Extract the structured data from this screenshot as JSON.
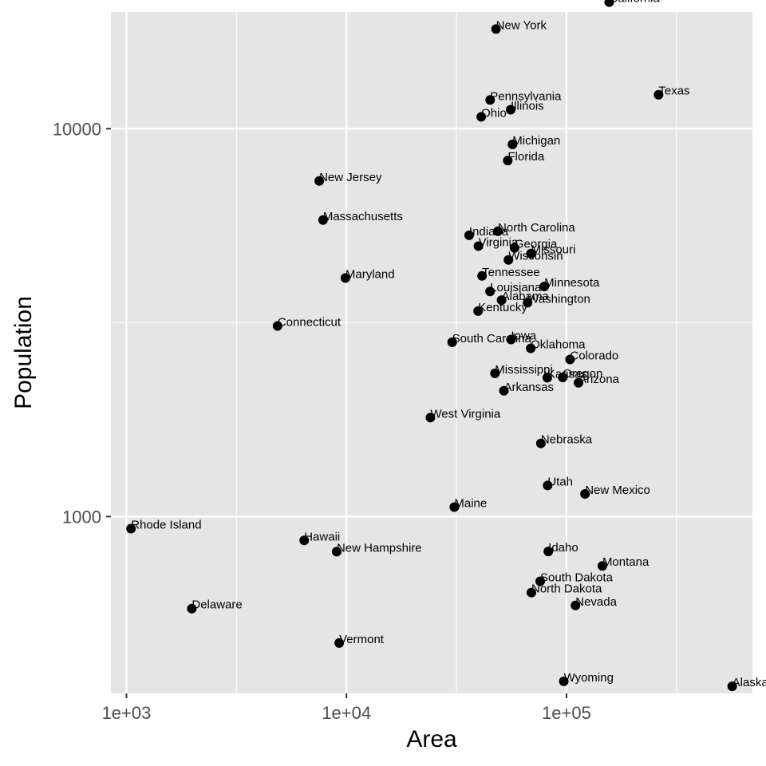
{
  "chart_data": {
    "type": "scatter",
    "title": "",
    "xlabel": "Area",
    "ylabel": "Population",
    "x_scale": "log10",
    "y_scale": "log10",
    "xlim": [
      850,
      700000
    ],
    "ylim": [
      350,
      20000
    ],
    "x_ticks": [
      1000,
      10000,
      100000
    ],
    "x_tick_labels": [
      "1e+03",
      "1e+04",
      "1e+05"
    ],
    "y_ticks": [
      1000,
      10000
    ],
    "y_tick_labels": [
      "1000",
      "10000"
    ],
    "grid": true,
    "legend": "none",
    "colors": {
      "panel": "#e5e5e5",
      "grid": "#ffffff",
      "point": "#000000",
      "tick": "#333333"
    },
    "points": [
      {
        "label": "Alabama",
        "x": 50708,
        "y": 3615
      },
      {
        "label": "Alaska",
        "x": 566432,
        "y": 365
      },
      {
        "label": "Arizona",
        "x": 113417,
        "y": 2212
      },
      {
        "label": "Arkansas",
        "x": 51945,
        "y": 2110
      },
      {
        "label": "California",
        "x": 156361,
        "y": 21198
      },
      {
        "label": "Colorado",
        "x": 103766,
        "y": 2541
      },
      {
        "label": "Connecticut",
        "x": 4862,
        "y": 3100
      },
      {
        "label": "Delaware",
        "x": 1982,
        "y": 579
      },
      {
        "label": "Florida",
        "x": 54090,
        "y": 8277
      },
      {
        "label": "Georgia",
        "x": 58073,
        "y": 4931
      },
      {
        "label": "Hawaii",
        "x": 6425,
        "y": 868
      },
      {
        "label": "Idaho",
        "x": 82677,
        "y": 813
      },
      {
        "label": "Illinois",
        "x": 55748,
        "y": 11197
      },
      {
        "label": "Indiana",
        "x": 36097,
        "y": 5313
      },
      {
        "label": "Iowa",
        "x": 55941,
        "y": 2861
      },
      {
        "label": "Kansas",
        "x": 81787,
        "y": 2280
      },
      {
        "label": "Kentucky",
        "x": 39650,
        "y": 3387
      },
      {
        "label": "Louisiana",
        "x": 44930,
        "y": 3806
      },
      {
        "label": "Maine",
        "x": 30920,
        "y": 1058
      },
      {
        "label": "Maryland",
        "x": 9891,
        "y": 4122
      },
      {
        "label": "Massachusetts",
        "x": 7826,
        "y": 5814
      },
      {
        "label": "Michigan",
        "x": 56817,
        "y": 9111
      },
      {
        "label": "Minnesota",
        "x": 79289,
        "y": 3921
      },
      {
        "label": "Mississippi",
        "x": 47296,
        "y": 2341
      },
      {
        "label": "Missouri",
        "x": 68995,
        "y": 4767
      },
      {
        "label": "Montana",
        "x": 145587,
        "y": 746
      },
      {
        "label": "Nebraska",
        "x": 76483,
        "y": 1544
      },
      {
        "label": "Nevada",
        "x": 109889,
        "y": 590
      },
      {
        "label": "New Hampshire",
        "x": 9027,
        "y": 812
      },
      {
        "label": "New Jersey",
        "x": 7521,
        "y": 7333
      },
      {
        "label": "New Mexico",
        "x": 121412,
        "y": 1144
      },
      {
        "label": "New York",
        "x": 47831,
        "y": 18076
      },
      {
        "label": "North Carolina",
        "x": 48798,
        "y": 5441
      },
      {
        "label": "North Dakota",
        "x": 69273,
        "y": 637
      },
      {
        "label": "Ohio",
        "x": 40975,
        "y": 10735
      },
      {
        "label": "Oklahoma",
        "x": 68782,
        "y": 2715
      },
      {
        "label": "Oregon",
        "x": 96184,
        "y": 2284
      },
      {
        "label": "Pennsylvania",
        "x": 44966,
        "y": 11860
      },
      {
        "label": "Rhode Island",
        "x": 1049,
        "y": 931
      },
      {
        "label": "South Carolina",
        "x": 30225,
        "y": 2816
      },
      {
        "label": "South Dakota",
        "x": 75955,
        "y": 681
      },
      {
        "label": "Tennessee",
        "x": 41328,
        "y": 4173
      },
      {
        "label": "Texas",
        "x": 262134,
        "y": 12237
      },
      {
        "label": "Utah",
        "x": 82096,
        "y": 1203
      },
      {
        "label": "Vermont",
        "x": 9267,
        "y": 472
      },
      {
        "label": "Virginia",
        "x": 39780,
        "y": 4981
      },
      {
        "label": "Washington",
        "x": 66570,
        "y": 3559
      },
      {
        "label": "West Virginia",
        "x": 24070,
        "y": 1799
      },
      {
        "label": "Wisconsin",
        "x": 54464,
        "y": 4589
      },
      {
        "label": "Wyoming",
        "x": 97203,
        "y": 376
      }
    ]
  }
}
